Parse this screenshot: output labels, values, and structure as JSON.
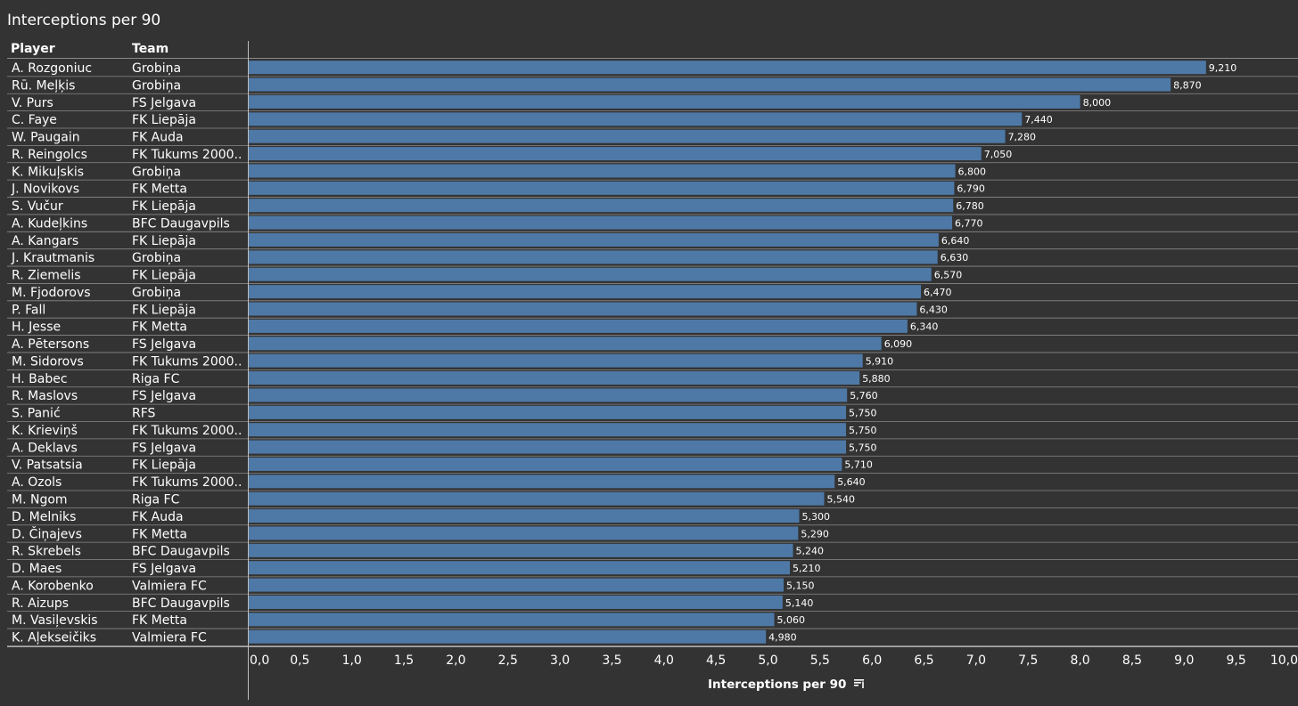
{
  "title": "Interceptions per 90",
  "headers": {
    "player": "Player",
    "team": "Team"
  },
  "colors": {
    "background": "#333333",
    "bar": "#4e79a7",
    "text": "#ffffff"
  },
  "x_axis_icon": "sort-descending-icon",
  "chart_data": {
    "type": "bar",
    "orientation": "horizontal",
    "title": "Interceptions per 90",
    "xlabel": "Interceptions per 90",
    "xlim": [
      0,
      10
    ],
    "ticks": [
      "0,0",
      "0,5",
      "1,0",
      "1,5",
      "2,0",
      "2,5",
      "3,0",
      "3,5",
      "4,0",
      "4,5",
      "5,0",
      "5,5",
      "6,0",
      "6,5",
      "7,0",
      "7,5",
      "8,0",
      "8,5",
      "9,0",
      "9,5",
      "10,0"
    ],
    "tick_values": [
      0,
      0.5,
      1,
      1.5,
      2,
      2.5,
      3,
      3.5,
      4,
      4.5,
      5,
      5.5,
      6,
      6.5,
      7,
      7.5,
      8,
      8.5,
      9,
      9.5,
      10
    ],
    "players": [
      "A. Rozgoniuc",
      "Rū. Meļķis",
      "V. Purs",
      "C. Faye",
      "W. Paugain",
      "R. Reingolcs",
      "K. Mikuļskis",
      "J. Novikovs",
      "S. Vučur",
      "A. Kudeļkins",
      "A. Kangars",
      "J. Krautmanis",
      "R. Ziemelis",
      "M. Fjodorovs",
      "P. Fall",
      "H. Jesse",
      "A. Pētersons",
      "M. Sidorovs",
      "H. Babec",
      "R. Maslovs",
      "S. Panić",
      "K. Krieviņš",
      "A. Deklavs",
      "V. Patsatsia",
      "A. Ozols",
      "M. Ngom",
      "D. Melniks",
      "D. Čiņajevs",
      "R. Skrebels",
      "D. Maes",
      "A. Korobenko",
      "R. Aizups",
      "M. Vasiļevskis",
      "K. Aļekseičiks"
    ],
    "teams": [
      "Grobiņa",
      "Grobiņa",
      "FS Jelgava",
      "FK Liepāja",
      "FK Auda",
      "FK Tukums 2000..",
      "Grobiņa",
      "FK Metta",
      "FK Liepāja",
      "BFC Daugavpils",
      "FK Liepāja",
      "Grobiņa",
      "FK Liepāja",
      "Grobiņa",
      "FK Liepāja",
      "FK Metta",
      "FS Jelgava",
      "FK Tukums 2000..",
      "Riga FC",
      "FS Jelgava",
      "RFS",
      "FK Tukums 2000..",
      "FS Jelgava",
      "FK Liepāja",
      "FK Tukums 2000..",
      "Riga FC",
      "FK Auda",
      "FK Metta",
      "BFC Daugavpils",
      "FS Jelgava",
      "Valmiera FC",
      "BFC Daugavpils",
      "FK Metta",
      "Valmiera FC"
    ],
    "values": [
      9.21,
      8.87,
      8.0,
      7.44,
      7.28,
      7.05,
      6.8,
      6.79,
      6.78,
      6.77,
      6.64,
      6.63,
      6.57,
      6.47,
      6.43,
      6.34,
      6.09,
      5.91,
      5.88,
      5.76,
      5.75,
      5.75,
      5.75,
      5.71,
      5.64,
      5.54,
      5.3,
      5.29,
      5.24,
      5.21,
      5.15,
      5.14,
      5.06,
      4.98
    ],
    "value_labels": [
      "9,210",
      "8,870",
      "8,000",
      "7,440",
      "7,280",
      "7,050",
      "6,800",
      "6,790",
      "6,780",
      "6,770",
      "6,640",
      "6,630",
      "6,570",
      "6,470",
      "6,430",
      "6,340",
      "6,090",
      "5,910",
      "5,880",
      "5,760",
      "5,750",
      "5,750",
      "5,750",
      "5,710",
      "5,640",
      "5,540",
      "5,300",
      "5,290",
      "5,240",
      "5,210",
      "5,150",
      "5,140",
      "5,060",
      "4,980"
    ]
  }
}
